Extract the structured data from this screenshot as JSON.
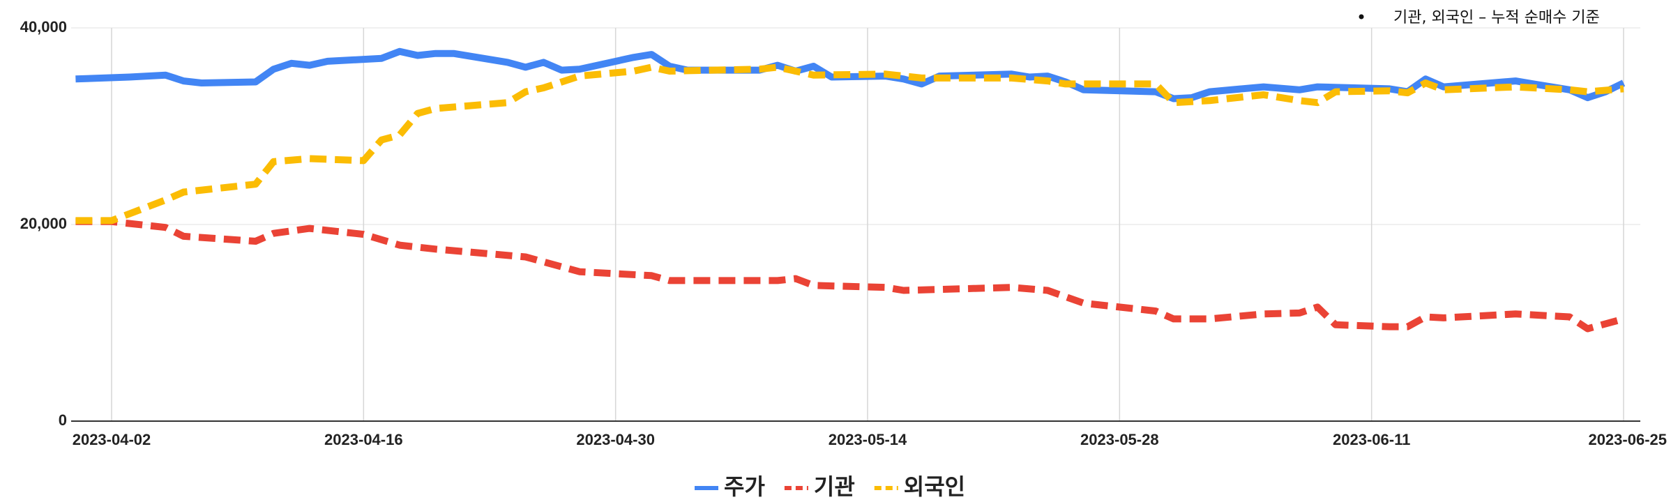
{
  "chart_data": {
    "type": "line",
    "note": "기관, 외국인 – 누적 순매수 기준",
    "x_ticks": [
      "2023-04-02",
      "2023-04-16",
      "2023-04-30",
      "2023-05-14",
      "2023-05-28",
      "2023-06-11",
      "2023-06-25"
    ],
    "y_ticks": [
      "0",
      "20,000",
      "40,000"
    ],
    "ylim": [
      0,
      40000
    ],
    "xlim": [
      "2023-03-31",
      "2023-06-25"
    ],
    "grid": true,
    "legend_position": "bottom",
    "series": [
      {
        "name": "주가",
        "color": "#4285F4",
        "dash": "solid",
        "points": [
          [
            "2023-03-31",
            34800
          ],
          [
            "2023-04-03",
            35000
          ],
          [
            "2023-04-05",
            35200
          ],
          [
            "2023-04-06",
            34600
          ],
          [
            "2023-04-07",
            34400
          ],
          [
            "2023-04-10",
            34500
          ],
          [
            "2023-04-11",
            35800
          ],
          [
            "2023-04-12",
            36400
          ],
          [
            "2023-04-13",
            36200
          ],
          [
            "2023-04-14",
            36600
          ],
          [
            "2023-04-17",
            36900
          ],
          [
            "2023-04-18",
            37600
          ],
          [
            "2023-04-19",
            37200
          ],
          [
            "2023-04-20",
            37400
          ],
          [
            "2023-04-21",
            37400
          ],
          [
            "2023-04-24",
            36500
          ],
          [
            "2023-04-25",
            36000
          ],
          [
            "2023-04-26",
            36500
          ],
          [
            "2023-04-27",
            35700
          ],
          [
            "2023-04-28",
            35800
          ],
          [
            "2023-05-01",
            37000
          ],
          [
            "2023-05-02",
            37300
          ],
          [
            "2023-05-03",
            36100
          ],
          [
            "2023-05-04",
            35700
          ],
          [
            "2023-05-08",
            35700
          ],
          [
            "2023-05-09",
            36200
          ],
          [
            "2023-05-10",
            35600
          ],
          [
            "2023-05-11",
            36100
          ],
          [
            "2023-05-12",
            35000
          ],
          [
            "2023-05-15",
            35100
          ],
          [
            "2023-05-16",
            34800
          ],
          [
            "2023-05-17",
            34300
          ],
          [
            "2023-05-18",
            35100
          ],
          [
            "2023-05-22",
            35300
          ],
          [
            "2023-05-23",
            35000
          ],
          [
            "2023-05-24",
            35100
          ],
          [
            "2023-05-25",
            34500
          ],
          [
            "2023-05-26",
            33700
          ],
          [
            "2023-05-30",
            33500
          ],
          [
            "2023-05-31",
            32800
          ],
          [
            "2023-06-01",
            32900
          ],
          [
            "2023-06-02",
            33500
          ],
          [
            "2023-06-05",
            34000
          ],
          [
            "2023-06-07",
            33700
          ],
          [
            "2023-06-08",
            34000
          ],
          [
            "2023-06-12",
            33800
          ],
          [
            "2023-06-13",
            33500
          ],
          [
            "2023-06-14",
            34800
          ],
          [
            "2023-06-15",
            34000
          ],
          [
            "2023-06-19",
            34600
          ],
          [
            "2023-06-20",
            34300
          ],
          [
            "2023-06-22",
            33700
          ],
          [
            "2023-06-23",
            32900
          ],
          [
            "2023-06-24",
            33500
          ],
          [
            "2023-06-25",
            34400
          ]
        ]
      },
      {
        "name": "기관",
        "color": "#EA4335",
        "dash": "dashed",
        "points": [
          [
            "2023-03-31",
            20300
          ],
          [
            "2023-04-02",
            20300
          ],
          [
            "2023-04-05",
            19700
          ],
          [
            "2023-04-06",
            18800
          ],
          [
            "2023-04-10",
            18300
          ],
          [
            "2023-04-11",
            19100
          ],
          [
            "2023-04-13",
            19600
          ],
          [
            "2023-04-16",
            19000
          ],
          [
            "2023-04-18",
            17900
          ],
          [
            "2023-04-20",
            17500
          ],
          [
            "2023-04-25",
            16700
          ],
          [
            "2023-04-28",
            15200
          ],
          [
            "2023-05-02",
            14800
          ],
          [
            "2023-05-03",
            14300
          ],
          [
            "2023-05-09",
            14300
          ],
          [
            "2023-05-10",
            14500
          ],
          [
            "2023-05-11",
            13800
          ],
          [
            "2023-05-15",
            13600
          ],
          [
            "2023-05-16",
            13300
          ],
          [
            "2023-05-18",
            13400
          ],
          [
            "2023-05-22",
            13600
          ],
          [
            "2023-05-24",
            13300
          ],
          [
            "2023-05-26",
            12000
          ],
          [
            "2023-05-30",
            11200
          ],
          [
            "2023-05-31",
            10400
          ],
          [
            "2023-06-02",
            10400
          ],
          [
            "2023-06-05",
            10900
          ],
          [
            "2023-06-07",
            11000
          ],
          [
            "2023-06-08",
            11600
          ],
          [
            "2023-06-09",
            9800
          ],
          [
            "2023-06-12",
            9600
          ],
          [
            "2023-06-13",
            9600
          ],
          [
            "2023-06-14",
            10600
          ],
          [
            "2023-06-15",
            10500
          ],
          [
            "2023-06-19",
            10900
          ],
          [
            "2023-06-21",
            10700
          ],
          [
            "2023-06-22",
            10600
          ],
          [
            "2023-06-23",
            9400
          ],
          [
            "2023-06-25",
            10400
          ]
        ]
      },
      {
        "name": "외국인",
        "color": "#FBBC04",
        "dash": "dashed",
        "points": [
          [
            "2023-03-31",
            20400
          ],
          [
            "2023-04-02",
            20400
          ],
          [
            "2023-04-05",
            22500
          ],
          [
            "2023-04-06",
            23300
          ],
          [
            "2023-04-10",
            24100
          ],
          [
            "2023-04-11",
            26400
          ],
          [
            "2023-04-13",
            26700
          ],
          [
            "2023-04-16",
            26500
          ],
          [
            "2023-04-17",
            28600
          ],
          [
            "2023-04-18",
            29100
          ],
          [
            "2023-04-19",
            31300
          ],
          [
            "2023-04-20",
            31800
          ],
          [
            "2023-04-24",
            32400
          ],
          [
            "2023-04-25",
            33500
          ],
          [
            "2023-04-26",
            33900
          ],
          [
            "2023-04-28",
            35100
          ],
          [
            "2023-05-01",
            35600
          ],
          [
            "2023-05-02",
            36000
          ],
          [
            "2023-05-03",
            35600
          ],
          [
            "2023-05-08",
            35800
          ],
          [
            "2023-05-09",
            36000
          ],
          [
            "2023-05-10",
            35600
          ],
          [
            "2023-05-11",
            35200
          ],
          [
            "2023-05-15",
            35300
          ],
          [
            "2023-05-17",
            34900
          ],
          [
            "2023-05-22",
            34900
          ],
          [
            "2023-05-24",
            34600
          ],
          [
            "2023-05-25",
            34300
          ],
          [
            "2023-05-30",
            34300
          ],
          [
            "2023-05-31",
            32400
          ],
          [
            "2023-06-02",
            32600
          ],
          [
            "2023-06-05",
            33200
          ],
          [
            "2023-06-07",
            32600
          ],
          [
            "2023-06-08",
            32400
          ],
          [
            "2023-06-09",
            33500
          ],
          [
            "2023-06-12",
            33600
          ],
          [
            "2023-06-13",
            33400
          ],
          [
            "2023-06-14",
            34400
          ],
          [
            "2023-06-15",
            33700
          ],
          [
            "2023-06-19",
            34000
          ],
          [
            "2023-06-22",
            33700
          ],
          [
            "2023-06-23",
            33500
          ],
          [
            "2023-06-25",
            33800
          ]
        ]
      }
    ]
  }
}
